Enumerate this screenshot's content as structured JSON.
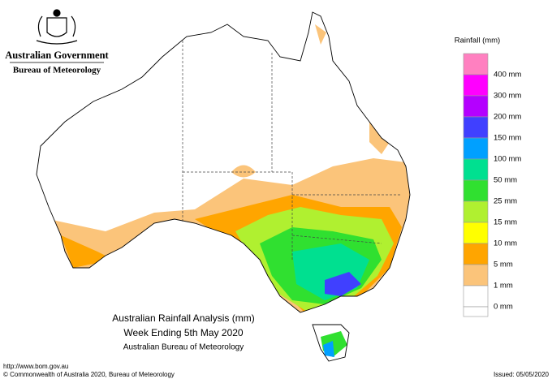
{
  "header": {
    "agency": "Australian Government",
    "bureau": "Bureau of Meteorology"
  },
  "legend": {
    "title": "Rainfall (mm)",
    "items": [
      {
        "label": null,
        "color": "#ff80c0"
      },
      {
        "label": "400 mm",
        "color": "#ff00ff"
      },
      {
        "label": "300 mm",
        "color": "#b400ff"
      },
      {
        "label": "200 mm",
        "color": "#4040ff"
      },
      {
        "label": "150 mm",
        "color": "#00a0ff"
      },
      {
        "label": "100 mm",
        "color": "#00e090"
      },
      {
        "label": "50 mm",
        "color": "#30e030"
      },
      {
        "label": "25 mm",
        "color": "#b0f030"
      },
      {
        "label": "15 mm",
        "color": "#ffff00"
      },
      {
        "label": "10 mm",
        "color": "#ffa500"
      },
      {
        "label": "5 mm",
        "color": "#fbc47a"
      },
      {
        "label": "1 mm",
        "color": "#ffffff"
      }
    ],
    "bottom_label": "0 mm"
  },
  "map_title": {
    "line1": "Australian Rainfall Analysis (mm)",
    "line2": "Week Ending 5th May 2020",
    "line3": "Australian Bureau of Meteorology"
  },
  "footer": {
    "url": "http://www.bom.gov.au",
    "copyright": "© Commonwealth of Australia 2020, Bureau of Meteorology",
    "issued": "Issued: 05/05/2020"
  }
}
